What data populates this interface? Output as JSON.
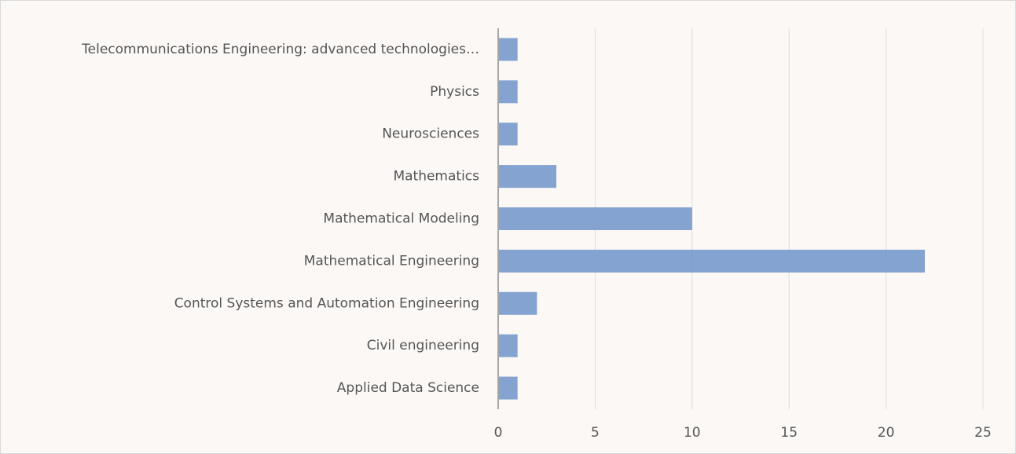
{
  "chart_data": {
    "type": "barh",
    "categories": [
      "Telecommunications Engineering: advanced technologies…",
      "Physics",
      "Neurosciences",
      "Mathematics",
      "Mathematical Modeling",
      "Mathematical Engineering",
      "Control Systems and Automation Engineering",
      "Civil engineering",
      "Applied Data Science"
    ],
    "values": [
      1,
      1,
      1,
      3,
      10,
      22,
      2,
      1,
      1
    ],
    "color": "#7a9bcd",
    "xlim": [
      0,
      25
    ],
    "xticks": [
      0,
      5,
      10,
      15,
      20,
      25
    ],
    "grid": true
  }
}
